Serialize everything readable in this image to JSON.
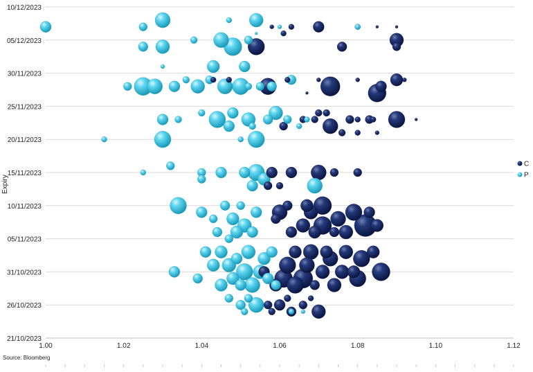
{
  "chart_data": {
    "type": "scatter",
    "bubble": true,
    "title": "",
    "xlabel": "",
    "ylabel": "Expiry",
    "xlim": [
      1.0,
      1.12
    ],
    "ylim": [
      "21/10/2023",
      "10/12/2023"
    ],
    "x_ticks": [
      "1.00",
      "1.02",
      "1.04",
      "1.06",
      "1.08",
      "1.10",
      "1.12"
    ],
    "y_ticks": [
      "21/10/2023",
      "26/10/2023",
      "31/10/2023",
      "05/11/2023",
      "10/11/2023",
      "15/11/2023",
      "20/11/2023",
      "25/11/2023",
      "30/11/2023",
      "05/12/2023",
      "10/12/2023"
    ],
    "grid": "horizontal",
    "legend_position": "right",
    "series": [
      {
        "name": "C",
        "color": "#14265c",
        "points": [
          {
            "x": 1.07,
            "y": "07/12/2023",
            "size": 8
          },
          {
            "x": 1.063,
            "y": "07/12/2023",
            "size": 4
          },
          {
            "x": 1.08,
            "y": "07/12/2023",
            "size": 4
          },
          {
            "x": 1.058,
            "y": "07/12/2023",
            "size": 3
          },
          {
            "x": 1.085,
            "y": "07/12/2023",
            "size": 2
          },
          {
            "x": 1.09,
            "y": "07/12/2023",
            "size": 2
          },
          {
            "x": 1.054,
            "y": "04/12/2023",
            "size": 12
          },
          {
            "x": 1.076,
            "y": "04/12/2023",
            "size": 7
          },
          {
            "x": 1.09,
            "y": "05/12/2023",
            "size": 10
          },
          {
            "x": 1.061,
            "y": "06/12/2023",
            "size": 4
          },
          {
            "x": 1.09,
            "y": "04/12/2023",
            "size": 6
          },
          {
            "x": 1.057,
            "y": "28/11/2023",
            "size": 12
          },
          {
            "x": 1.073,
            "y": "28/11/2023",
            "size": 14
          },
          {
            "x": 1.085,
            "y": "27/11/2023",
            "size": 13
          },
          {
            "x": 1.09,
            "y": "29/11/2023",
            "size": 9
          },
          {
            "x": 1.086,
            "y": "28/11/2023",
            "size": 8
          },
          {
            "x": 1.047,
            "y": "29/11/2023",
            "size": 4
          },
          {
            "x": 1.062,
            "y": "29/11/2023",
            "size": 4
          },
          {
            "x": 1.07,
            "y": "29/11/2023",
            "size": 3
          },
          {
            "x": 1.08,
            "y": "29/11/2023",
            "size": 3
          },
          {
            "x": 1.092,
            "y": "29/11/2023",
            "size": 3
          },
          {
            "x": 1.043,
            "y": "29/11/2023",
            "size": 4
          },
          {
            "x": 1.067,
            "y": "27/11/2023",
            "size": 2
          },
          {
            "x": 1.07,
            "y": "24/11/2023",
            "size": 5
          },
          {
            "x": 1.073,
            "y": "22/11/2023",
            "size": 11
          },
          {
            "x": 1.09,
            "y": "23/11/2023",
            "size": 12
          },
          {
            "x": 1.083,
            "y": "23/11/2023",
            "size": 6
          },
          {
            "x": 1.078,
            "y": "23/11/2023",
            "size": 6
          },
          {
            "x": 1.061,
            "y": "22/11/2023",
            "size": 6
          },
          {
            "x": 1.066,
            "y": "23/11/2023",
            "size": 5
          },
          {
            "x": 1.069,
            "y": "23/11/2023",
            "size": 5
          },
          {
            "x": 1.076,
            "y": "21/11/2023",
            "size": 5
          },
          {
            "x": 1.072,
            "y": "24/11/2023",
            "size": 5
          },
          {
            "x": 1.08,
            "y": "23/11/2023",
            "size": 4
          },
          {
            "x": 1.084,
            "y": "23/11/2023",
            "size": 4
          },
          {
            "x": 1.08,
            "y": "21/11/2023",
            "size": 4
          },
          {
            "x": 1.085,
            "y": "21/11/2023",
            "size": 3
          },
          {
            "x": 1.095,
            "y": "23/11/2023",
            "size": 2
          },
          {
            "x": 1.063,
            "y": "15/11/2023",
            "size": 8
          },
          {
            "x": 1.07,
            "y": "15/11/2023",
            "size": 11
          },
          {
            "x": 1.074,
            "y": "15/11/2023",
            "size": 6
          },
          {
            "x": 1.08,
            "y": "15/11/2023",
            "size": 6
          },
          {
            "x": 1.058,
            "y": "15/11/2023",
            "size": 8
          },
          {
            "x": 1.057,
            "y": "13/11/2023",
            "size": 6
          },
          {
            "x": 1.06,
            "y": "13/11/2023",
            "size": 5
          },
          {
            "x": 1.06,
            "y": "09/11/2023",
            "size": 11
          },
          {
            "x": 1.068,
            "y": "09/11/2023",
            "size": 10
          },
          {
            "x": 1.071,
            "y": "10/11/2023",
            "size": 13
          },
          {
            "x": 1.079,
            "y": "09/11/2023",
            "size": 12
          },
          {
            "x": 1.082,
            "y": "07/11/2023",
            "size": 16
          },
          {
            "x": 1.075,
            "y": "08/11/2023",
            "size": 11
          },
          {
            "x": 1.066,
            "y": "07/11/2023",
            "size": 10
          },
          {
            "x": 1.071,
            "y": "07/11/2023",
            "size": 13
          },
          {
            "x": 1.085,
            "y": "07/11/2023",
            "size": 9
          },
          {
            "x": 1.063,
            "y": "06/11/2023",
            "size": 8
          },
          {
            "x": 1.077,
            "y": "06/11/2023",
            "size": 10
          },
          {
            "x": 1.062,
            "y": "10/11/2023",
            "size": 7
          },
          {
            "x": 1.067,
            "y": "10/11/2023",
            "size": 9
          },
          {
            "x": 1.074,
            "y": "06/11/2023",
            "size": 7
          },
          {
            "x": 1.069,
            "y": "06/11/2023",
            "size": 9
          },
          {
            "x": 1.059,
            "y": "08/11/2023",
            "size": 7
          },
          {
            "x": 1.083,
            "y": "09/11/2023",
            "size": 8
          },
          {
            "x": 1.064,
            "y": "03/11/2023",
            "size": 9
          },
          {
            "x": 1.068,
            "y": "03/11/2023",
            "size": 11
          },
          {
            "x": 1.072,
            "y": "03/11/2023",
            "size": 9
          },
          {
            "x": 1.077,
            "y": "03/11/2023",
            "size": 10
          },
          {
            "x": 1.062,
            "y": "01/11/2023",
            "size": 12
          },
          {
            "x": 1.067,
            "y": "01/11/2023",
            "size": 11
          },
          {
            "x": 1.081,
            "y": "02/11/2023",
            "size": 12
          },
          {
            "x": 1.084,
            "y": "03/11/2023",
            "size": 9
          },
          {
            "x": 1.073,
            "y": "02/11/2023",
            "size": 11
          },
          {
            "x": 1.061,
            "y": "30/10/2023",
            "size": 13
          },
          {
            "x": 1.066,
            "y": "30/10/2023",
            "size": 14
          },
          {
            "x": 1.071,
            "y": "31/10/2023",
            "size": 10
          },
          {
            "x": 1.076,
            "y": "31/10/2023",
            "size": 10
          },
          {
            "x": 1.08,
            "y": "30/10/2023",
            "size": 12
          },
          {
            "x": 1.086,
            "y": "31/10/2023",
            "size": 13
          },
          {
            "x": 1.079,
            "y": "31/10/2023",
            "size": 9
          },
          {
            "x": 1.056,
            "y": "31/10/2023",
            "size": 8
          },
          {
            "x": 1.069,
            "y": "29/10/2023",
            "size": 7
          },
          {
            "x": 1.074,
            "y": "29/10/2023",
            "size": 10
          },
          {
            "x": 1.059,
            "y": "29/10/2023",
            "size": 9
          },
          {
            "x": 1.064,
            "y": "29/10/2023",
            "size": 12
          },
          {
            "x": 1.057,
            "y": "26/10/2023",
            "size": 6
          },
          {
            "x": 1.06,
            "y": "26/10/2023",
            "size": 8
          },
          {
            "x": 1.063,
            "y": "25/10/2023",
            "size": 7
          },
          {
            "x": 1.066,
            "y": "26/10/2023",
            "size": 6
          },
          {
            "x": 1.07,
            "y": "25/10/2023",
            "size": 10
          },
          {
            "x": 1.062,
            "y": "27/10/2023",
            "size": 5
          },
          {
            "x": 1.058,
            "y": "25/10/2023",
            "size": 5
          },
          {
            "x": 1.068,
            "y": "27/10/2023",
            "size": 4
          }
        ]
      },
      {
        "name": "P",
        "color": "#3cc6e4",
        "points": [
          {
            "x": 1.0,
            "y": "07/12/2023",
            "size": 8
          },
          {
            "x": 1.03,
            "y": "08/12/2023",
            "size": 11
          },
          {
            "x": 1.025,
            "y": "07/12/2023",
            "size": 6
          },
          {
            "x": 1.054,
            "y": "08/12/2023",
            "size": 10
          },
          {
            "x": 1.047,
            "y": "08/12/2023",
            "size": 4
          },
          {
            "x": 1.06,
            "y": "07/12/2023",
            "size": 3
          },
          {
            "x": 1.054,
            "y": "06/12/2023",
            "size": 2
          },
          {
            "x": 1.08,
            "y": "07/12/2023",
            "size": 4
          },
          {
            "x": 1.025,
            "y": "04/12/2023",
            "size": 7
          },
          {
            "x": 1.03,
            "y": "04/12/2023",
            "size": 10
          },
          {
            "x": 1.045,
            "y": "05/12/2023",
            "size": 11
          },
          {
            "x": 1.048,
            "y": "04/12/2023",
            "size": 13
          },
          {
            "x": 1.038,
            "y": "05/12/2023",
            "size": 5
          },
          {
            "x": 1.052,
            "y": "05/12/2023",
            "size": 6
          },
          {
            "x": 1.03,
            "y": "01/12/2023",
            "size": 3
          },
          {
            "x": 1.043,
            "y": "01/12/2023",
            "size": 9
          },
          {
            "x": 1.051,
            "y": "01/12/2023",
            "size": 8
          },
          {
            "x": 1.025,
            "y": "28/11/2023",
            "size": 13
          },
          {
            "x": 1.028,
            "y": "28/11/2023",
            "size": 11
          },
          {
            "x": 1.033,
            "y": "28/11/2023",
            "size": 8
          },
          {
            "x": 1.039,
            "y": "28/11/2023",
            "size": 10
          },
          {
            "x": 1.046,
            "y": "28/11/2023",
            "size": 11
          },
          {
            "x": 1.05,
            "y": "28/11/2023",
            "size": 12
          },
          {
            "x": 1.042,
            "y": "29/11/2023",
            "size": 6
          },
          {
            "x": 1.021,
            "y": "28/11/2023",
            "size": 6
          },
          {
            "x": 1.036,
            "y": "29/11/2023",
            "size": 5
          },
          {
            "x": 1.055,
            "y": "28/11/2023",
            "size": 6
          },
          {
            "x": 1.058,
            "y": "28/11/2023",
            "size": 7
          },
          {
            "x": 1.063,
            "y": "29/11/2023",
            "size": 7
          },
          {
            "x": 1.052,
            "y": "28/11/2023",
            "size": 5
          },
          {
            "x": 1.03,
            "y": "23/11/2023",
            "size": 8
          },
          {
            "x": 1.034,
            "y": "23/11/2023",
            "size": 5
          },
          {
            "x": 1.044,
            "y": "23/11/2023",
            "size": 12
          },
          {
            "x": 1.048,
            "y": "24/11/2023",
            "size": 8
          },
          {
            "x": 1.052,
            "y": "23/11/2023",
            "size": 10
          },
          {
            "x": 1.057,
            "y": "23/11/2023",
            "size": 7
          },
          {
            "x": 1.059,
            "y": "24/11/2023",
            "size": 10
          },
          {
            "x": 1.047,
            "y": "22/11/2023",
            "size": 8
          },
          {
            "x": 1.053,
            "y": "22/11/2023",
            "size": 5
          },
          {
            "x": 1.062,
            "y": "23/11/2023",
            "size": 6
          },
          {
            "x": 1.065,
            "y": "22/11/2023",
            "size": 4
          },
          {
            "x": 1.067,
            "y": "23/11/2023",
            "size": 4
          },
          {
            "x": 1.04,
            "y": "24/11/2023",
            "size": 5
          },
          {
            "x": 1.03,
            "y": "20/11/2023",
            "size": 12
          },
          {
            "x": 1.015,
            "y": "20/11/2023",
            "size": 4
          },
          {
            "x": 1.054,
            "y": "20/11/2023",
            "size": 12
          },
          {
            "x": 1.05,
            "y": "20/11/2023",
            "size": 4
          },
          {
            "x": 1.025,
            "y": "15/11/2023",
            "size": 4
          },
          {
            "x": 1.032,
            "y": "16/11/2023",
            "size": 6
          },
          {
            "x": 1.04,
            "y": "15/11/2023",
            "size": 6
          },
          {
            "x": 1.045,
            "y": "15/11/2023",
            "size": 8
          },
          {
            "x": 1.051,
            "y": "15/11/2023",
            "size": 8
          },
          {
            "x": 1.054,
            "y": "15/11/2023",
            "size": 12
          },
          {
            "x": 1.056,
            "y": "14/11/2023",
            "size": 9
          },
          {
            "x": 1.053,
            "y": "13/11/2023",
            "size": 8
          },
          {
            "x": 1.069,
            "y": "13/11/2023",
            "size": 11
          },
          {
            "x": 1.04,
            "y": "14/11/2023",
            "size": 6
          },
          {
            "x": 1.034,
            "y": "10/11/2023",
            "size": 12
          },
          {
            "x": 1.04,
            "y": "09/11/2023",
            "size": 8
          },
          {
            "x": 1.043,
            "y": "08/11/2023",
            "size": 6
          },
          {
            "x": 1.046,
            "y": "10/11/2023",
            "size": 7
          },
          {
            "x": 1.048,
            "y": "08/11/2023",
            "size": 9
          },
          {
            "x": 1.051,
            "y": "07/11/2023",
            "size": 10
          },
          {
            "x": 1.054,
            "y": "09/11/2023",
            "size": 8
          },
          {
            "x": 1.05,
            "y": "10/11/2023",
            "size": 6
          },
          {
            "x": 1.049,
            "y": "06/11/2023",
            "size": 9
          },
          {
            "x": 1.053,
            "y": "06/11/2023",
            "size": 8
          },
          {
            "x": 1.044,
            "y": "06/11/2023",
            "size": 7
          },
          {
            "x": 1.047,
            "y": "05/11/2023",
            "size": 6
          },
          {
            "x": 1.041,
            "y": "03/11/2023",
            "size": 8
          },
          {
            "x": 1.045,
            "y": "03/11/2023",
            "size": 9
          },
          {
            "x": 1.049,
            "y": "02/11/2023",
            "size": 8
          },
          {
            "x": 1.052,
            "y": "03/11/2023",
            "size": 10
          },
          {
            "x": 1.056,
            "y": "02/11/2023",
            "size": 9
          },
          {
            "x": 1.058,
            "y": "03/11/2023",
            "size": 8
          },
          {
            "x": 1.043,
            "y": "01/11/2023",
            "size": 9
          },
          {
            "x": 1.047,
            "y": "01/11/2023",
            "size": 10
          },
          {
            "x": 1.051,
            "y": "31/10/2023",
            "size": 12
          },
          {
            "x": 1.055,
            "y": "31/10/2023",
            "size": 10
          },
          {
            "x": 1.048,
            "y": "30/10/2023",
            "size": 9
          },
          {
            "x": 1.053,
            "y": "29/10/2023",
            "size": 11
          },
          {
            "x": 1.057,
            "y": "30/10/2023",
            "size": 8
          },
          {
            "x": 1.045,
            "y": "29/10/2023",
            "size": 9
          },
          {
            "x": 1.05,
            "y": "29/10/2023",
            "size": 8
          },
          {
            "x": 1.039,
            "y": "30/10/2023",
            "size": 7
          },
          {
            "x": 1.033,
            "y": "31/10/2023",
            "size": 8
          },
          {
            "x": 1.059,
            "y": "29/10/2023",
            "size": 7
          },
          {
            "x": 1.05,
            "y": "26/10/2023",
            "size": 7
          },
          {
            "x": 1.054,
            "y": "26/10/2023",
            "size": 11
          },
          {
            "x": 1.047,
            "y": "27/10/2023",
            "size": 6
          },
          {
            "x": 1.052,
            "y": "27/10/2023",
            "size": 6
          },
          {
            "x": 1.051,
            "y": "25/10/2023",
            "size": 5
          },
          {
            "x": 1.063,
            "y": "25/10/2023",
            "size": 4
          },
          {
            "x": 1.066,
            "y": "25/10/2023",
            "size": 3
          }
        ]
      }
    ],
    "source": "Source: Bloomberg"
  }
}
